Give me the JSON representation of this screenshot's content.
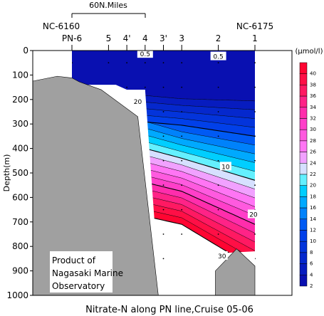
{
  "chart_data": {
    "type": "heatmap",
    "title": "Nitrate-N along PN line,Cruise 05-06",
    "ylabel": "Depth(m)",
    "unit_label": "(µmol/l)",
    "scale_bar_label": "60N.Miles",
    "left_station_code": "NC-6160",
    "right_station_code": "NC-6175",
    "station_labels": [
      "PN-6",
      "5",
      "4'",
      "4",
      "3'",
      "3",
      "2",
      "1"
    ],
    "station_distance_nm": [
      0,
      50,
      75,
      100,
      125,
      150,
      200,
      250
    ],
    "y_ticks": [
      0,
      100,
      200,
      300,
      400,
      500,
      600,
      700,
      800,
      900,
      1000
    ],
    "ylim": [
      0,
      1000
    ],
    "colorbar_ticks": [
      2,
      4,
      6,
      8,
      10,
      12,
      14,
      16,
      18,
      20,
      22,
      24,
      26,
      28,
      30,
      32,
      34,
      36,
      38,
      40
    ],
    "contour_labels": [
      "0.5",
      "0.5",
      "20",
      "10",
      "20",
      "30"
    ],
    "credit_lines": [
      "Product of",
      "Nagasaki Marine",
      "Observatory"
    ],
    "colors": {
      "topo": "#a0a0a0",
      "low": "#0a0ab4",
      "mid": "#00e0ff",
      "high": "#ff0030"
    }
  }
}
